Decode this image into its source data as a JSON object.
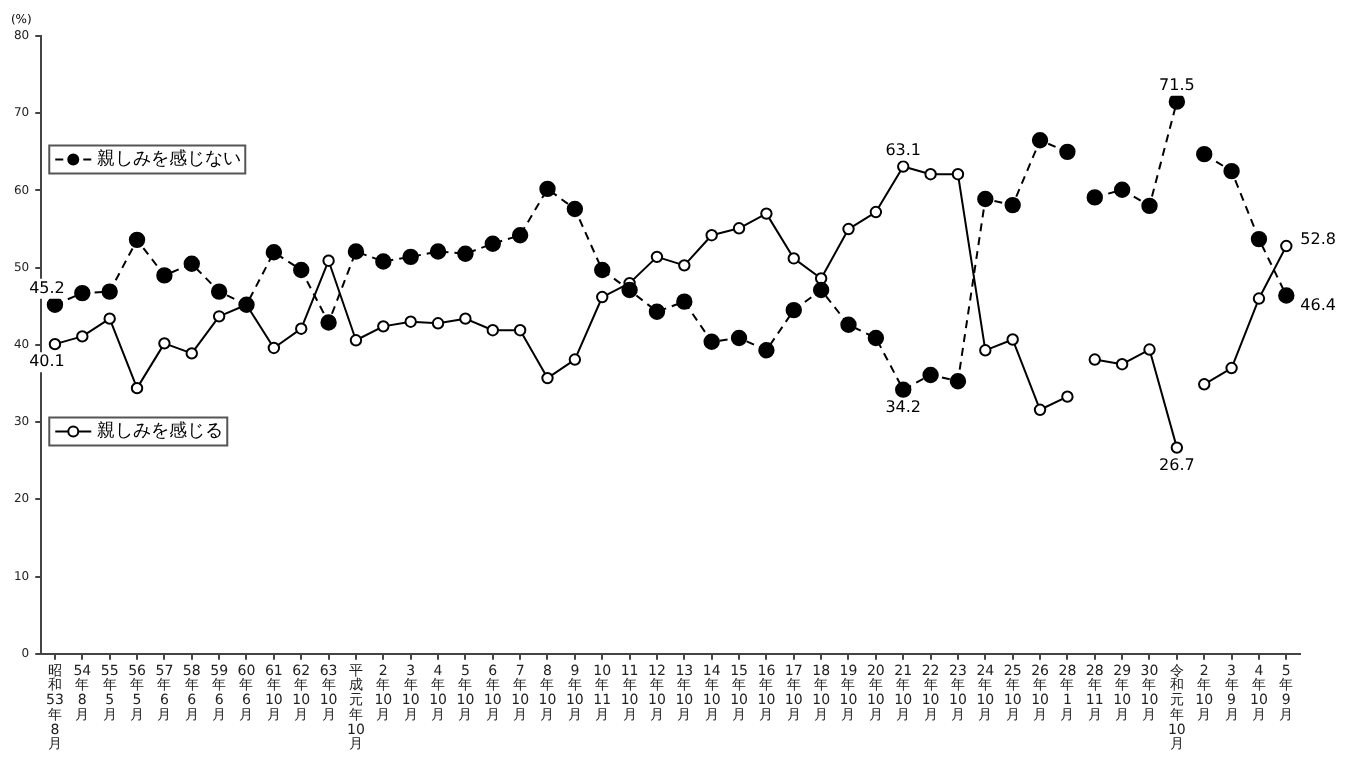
{
  "chart_data": {
    "type": "line",
    "ylabel": "(%)",
    "categories": [
      "昭和53年8月",
      "54年8月",
      "55年5月",
      "56年5月",
      "57年6月",
      "58年6月",
      "59年6月",
      "60年6月",
      "61年10月",
      "62年10月",
      "63年10月",
      "平成元年10月",
      "2年10月",
      "3年10月",
      "4年10月",
      "5年10月",
      "6年10月",
      "7年10月",
      "8年10月",
      "9年10月",
      "10年11月",
      "11年10月",
      "12年10月",
      "13年10月",
      "14年10月",
      "15年10月",
      "16年10月",
      "17年10月",
      "18年10月",
      "19年10月",
      "20年10月",
      "21年10月",
      "22年10月",
      "23年10月",
      "24年10月",
      "25年10月",
      "26年10月",
      "28年1月",
      "28年11月",
      "29年10月",
      "30年10月",
      "令和元年10月",
      "2年10月",
      "3年9月",
      "4年10月",
      "5年9月"
    ],
    "series": [
      {
        "name": "親しみを感じない",
        "color": "#000000",
        "line_style": "dashed",
        "values": [
          45.2,
          46.7,
          46.9,
          53.6,
          49.0,
          50.5,
          46.9,
          45.2,
          52.0,
          49.7,
          42.9,
          52.1,
          50.8,
          51.4,
          52.1,
          51.8,
          53.1,
          54.2,
          60.2,
          57.6,
          49.7,
          47.1,
          44.3,
          45.6,
          40.4,
          40.9,
          39.3,
          44.5,
          47.1,
          42.6,
          40.9,
          34.2,
          36.1,
          35.3,
          58.9,
          58.1,
          66.5,
          65.0,
          null,
          null,
          null,
          null,
          null,
          null,
          null,
          null
        ]
      },
      {
        "color": "#000000",
        "line_style": "dashed",
        "values": [
          null,
          null,
          null,
          null,
          null,
          null,
          null,
          null,
          null,
          null,
          null,
          null,
          null,
          null,
          null,
          null,
          null,
          null,
          null,
          null,
          null,
          null,
          null,
          null,
          null,
          null,
          null,
          null,
          null,
          null,
          null,
          null,
          null,
          null,
          null,
          null,
          null,
          null,
          59.1,
          60.1,
          58.0,
          71.5,
          null,
          null,
          null,
          null
        ]
      },
      {
        "color": "#000000",
        "line_style": "dashed",
        "values": [
          null,
          null,
          null,
          null,
          null,
          null,
          null,
          null,
          null,
          null,
          null,
          null,
          null,
          null,
          null,
          null,
          null,
          null,
          null,
          null,
          null,
          null,
          null,
          null,
          null,
          null,
          null,
          null,
          null,
          null,
          null,
          null,
          null,
          null,
          null,
          null,
          null,
          null,
          null,
          null,
          null,
          null,
          64.7,
          62.5,
          53.7,
          46.4
        ]
      },
      {
        "name": "親しみを感じる",
        "color": "#000000",
        "line_style": "solid",
        "values": [
          40.1,
          41.1,
          43.4,
          34.4,
          40.2,
          38.9,
          43.7,
          45.2,
          39.6,
          42.1,
          50.9,
          40.6,
          42.4,
          43.0,
          42.8,
          43.4,
          41.9,
          41.9,
          35.7,
          38.1,
          46.2,
          48.0,
          51.4,
          50.3,
          54.2,
          55.1,
          57.0,
          51.2,
          48.6,
          55.0,
          57.2,
          63.1,
          62.1,
          62.1,
          39.3,
          40.7,
          31.6,
          33.3,
          null,
          null,
          null,
          null,
          null,
          null,
          null,
          null
        ]
      },
      {
        "color": "#000000",
        "line_style": "solid",
        "values": [
          null,
          null,
          null,
          null,
          null,
          null,
          null,
          null,
          null,
          null,
          null,
          null,
          null,
          null,
          null,
          null,
          null,
          null,
          null,
          null,
          null,
          null,
          null,
          null,
          null,
          null,
          null,
          null,
          null,
          null,
          null,
          null,
          null,
          null,
          null,
          null,
          null,
          null,
          38.1,
          37.5,
          39.4,
          26.7,
          null,
          null,
          null,
          null
        ]
      },
      {
        "color": "#000000",
        "line_style": "solid",
        "values": [
          null,
          null,
          null,
          null,
          null,
          null,
          null,
          null,
          null,
          null,
          null,
          null,
          null,
          null,
          null,
          null,
          null,
          null,
          null,
          null,
          null,
          null,
          null,
          null,
          null,
          null,
          null,
          null,
          null,
          null,
          null,
          null,
          null,
          null,
          null,
          null,
          null,
          null,
          null,
          null,
          null,
          null,
          34.9,
          37.0,
          46.0,
          52.8
        ]
      }
    ],
    "ylim": [
      0,
      80
    ],
    "yticks": [
      0,
      10,
      20,
      30,
      40,
      50,
      60,
      70,
      80
    ],
    "grid": false,
    "legend": "left",
    "marker": "circle",
    "annotations": [
      {
        "text": "45.2",
        "x": "昭和53年8月",
        "y": 45.2
      },
      {
        "text": "40.1",
        "x": "昭和53年8月",
        "y": 40.1
      },
      {
        "text": "63.1",
        "x": "21年10月",
        "y": 63.1
      },
      {
        "text": "34.2",
        "x": "21年10月",
        "y": 34.2
      },
      {
        "text": "71.5",
        "x": "令和元年10月",
        "y": 71.5
      },
      {
        "text": "26.7",
        "x": "令和元年10月",
        "y": 26.7
      },
      {
        "text": "52.8",
        "x": "5年9月",
        "y": 52.8
      },
      {
        "text": "46.4",
        "x": "5年9月",
        "y": 46.4
      }
    ]
  }
}
